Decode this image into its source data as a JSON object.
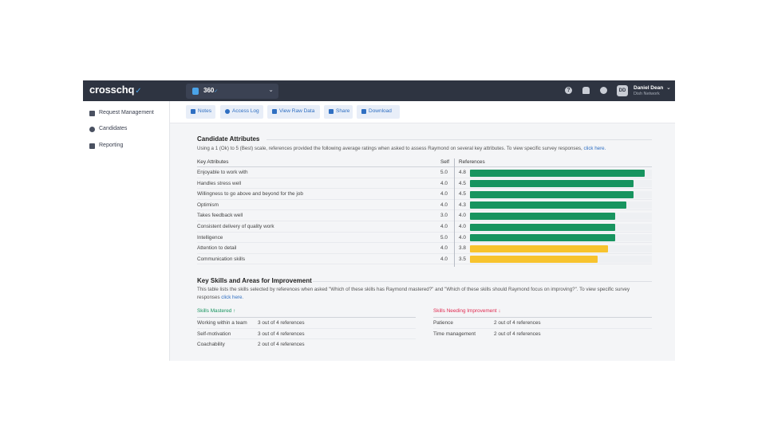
{
  "app": {
    "logo": "crosschq",
    "module": "360",
    "user": {
      "initials": "DD",
      "name": "Daniel Dean",
      "org": "Dish Network"
    }
  },
  "sidebar": {
    "items": [
      {
        "label": "Request Management",
        "icon": "clipboard-icon"
      },
      {
        "label": "Candidates",
        "icon": "person-icon"
      },
      {
        "label": "Reporting",
        "icon": "chart-icon"
      }
    ]
  },
  "toolbar": {
    "buttons": [
      {
        "label": "Notes",
        "icon": "notes-icon"
      },
      {
        "label": "Access Log",
        "icon": "clock-icon"
      },
      {
        "label": "View Raw Data",
        "icon": "list-icon"
      },
      {
        "label": "Share",
        "icon": "share-icon"
      },
      {
        "label": "Download",
        "icon": "download-icon"
      }
    ]
  },
  "attributes": {
    "title": "Candidate Attributes",
    "description": "Using a 1 (Ok) to 5 (Best) scale, references provided the following average ratings when asked to assess Raymond on several key attributes. To view specific survey responses,",
    "link": "click here.",
    "col_attr": "Key Attributes",
    "col_self": "Self",
    "col_ref": "References",
    "scale_max": 5,
    "colors": {
      "high": "#17945f",
      "mid": "#f7c32e"
    },
    "rows": [
      {
        "name": "Enjoyable to work with",
        "self": "5.0",
        "ref": "4.8",
        "value": 4.8
      },
      {
        "name": "Handles stress well",
        "self": "4.0",
        "ref": "4.5",
        "value": 4.5
      },
      {
        "name": "Willingness to go above and beyond for the job",
        "self": "4.0",
        "ref": "4.5",
        "value": 4.5
      },
      {
        "name": "Optimism",
        "self": "4.0",
        "ref": "4.3",
        "value": 4.3
      },
      {
        "name": "Takes feedback well",
        "self": "3.0",
        "ref": "4.0",
        "value": 4.0
      },
      {
        "name": "Consistent delivery of quality work",
        "self": "4.0",
        "ref": "4.0",
        "value": 4.0
      },
      {
        "name": "Intelligence",
        "self": "5.0",
        "ref": "4.0",
        "value": 4.0
      },
      {
        "name": "Attention to detail",
        "self": "4.0",
        "ref": "3.8",
        "value": 3.8
      },
      {
        "name": "Communication skills",
        "self": "4.0",
        "ref": "3.5",
        "value": 3.5
      }
    ]
  },
  "skills": {
    "title": "Key Skills and Areas for Improvement",
    "description": "This table lists the skills selected by references when asked \"Which of these skills has Raymond mastered?\" and \"Which of these skills should Raymond focus on improving?\". To view specific survey responses",
    "link": "click here.",
    "mastered": {
      "label": "Skills Mastered",
      "arrow": "↑",
      "color": "#17945f",
      "rows": [
        {
          "name": "Working within a team",
          "count": "3 out of 4 references"
        },
        {
          "name": "Self-motivation",
          "count": "3 out of 4 references"
        },
        {
          "name": "Coachability",
          "count": "2 out of 4 references"
        }
      ]
    },
    "improve": {
      "label": "Skills Needing Improvement",
      "arrow": "↓",
      "color": "#e0284f",
      "rows": [
        {
          "name": "Patience",
          "count": "2 out of 4 references"
        },
        {
          "name": "Time management",
          "count": "2 out of 4 references"
        }
      ]
    }
  }
}
